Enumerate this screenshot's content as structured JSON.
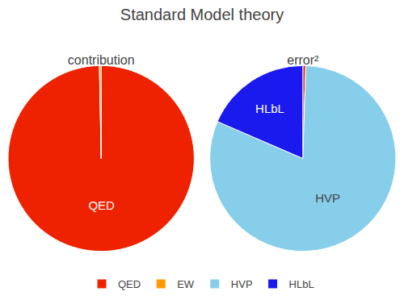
{
  "chart_data": [
    {
      "type": "pie",
      "title": "Standard Model theory",
      "subtitle": "contribution",
      "categories": [
        "QED",
        "EW"
      ],
      "values": [
        99.7,
        0.3
      ],
      "colors": [
        "#ee2200",
        "#ff9900"
      ],
      "annotations": [
        "QED"
      ],
      "legend": "bottom"
    },
    {
      "type": "pie",
      "subtitle": "error²",
      "categories": [
        "QED",
        "HVP",
        "HLbL"
      ],
      "values": [
        0.5,
        81.0,
        18.5
      ],
      "colors": [
        "#ee2200",
        "#87ceeb",
        "#1a1aee"
      ],
      "annotations": [
        "HVP",
        "HLbL"
      ]
    }
  ]
}
